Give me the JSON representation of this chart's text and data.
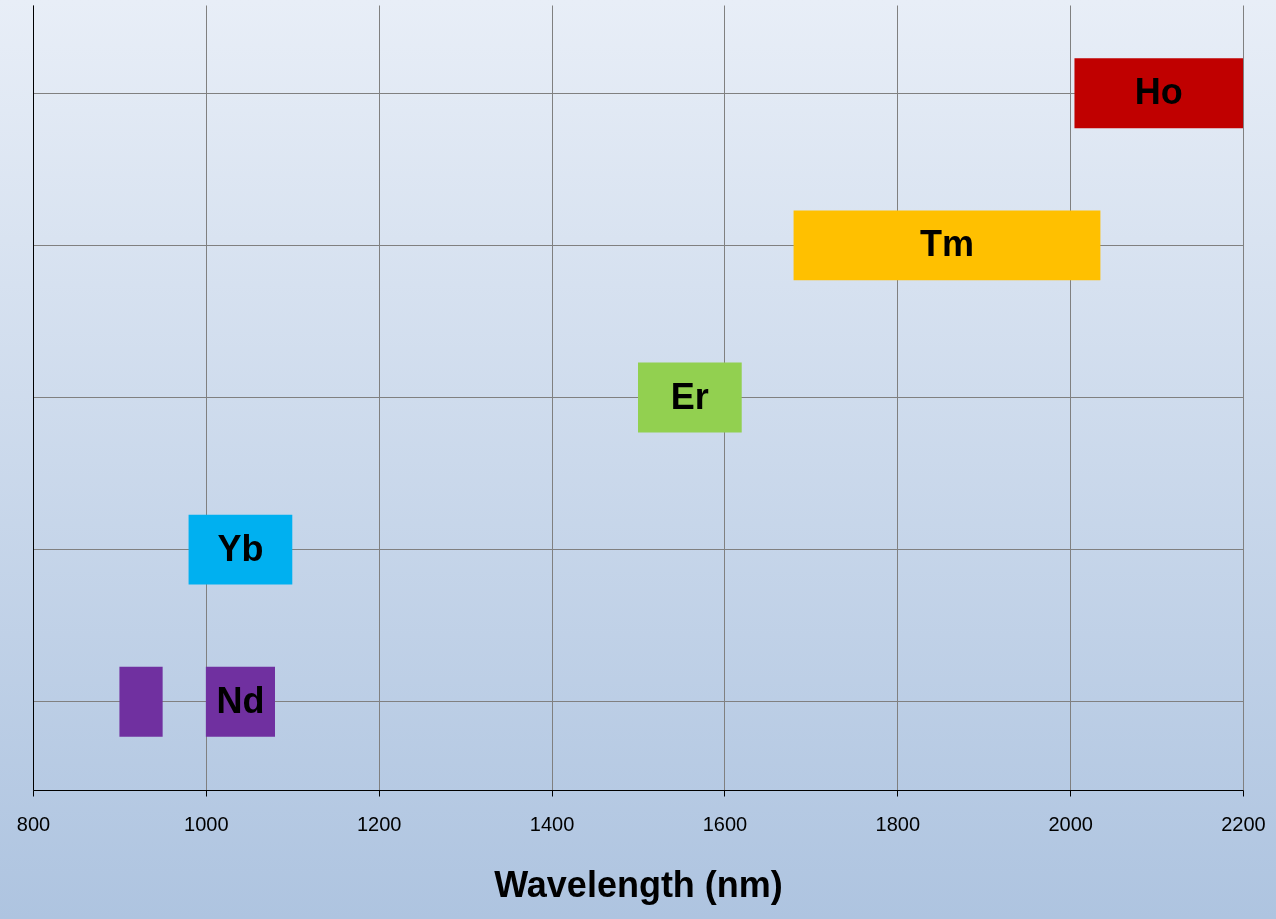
{
  "chart_data": {
    "type": "bar",
    "orientation": "horizontal",
    "xlabel": "Wavelength (nm)",
    "categories": [
      "Ho",
      "Tm",
      "Er",
      "Yb",
      "Nd"
    ],
    "series": [
      {
        "values": [
          195,
          355,
          120,
          120,
          80
        ],
        "base": [
          2005,
          1680,
          1500,
          980,
          1000
        ],
        "colors": [
          "#c00000",
          "#ffc000",
          "#92d050",
          "#00b0f0",
          "#7030a0"
        ]
      },
      {
        "values": [
          null,
          null,
          null,
          null,
          50
        ],
        "base": [
          null,
          null,
          null,
          null,
          900
        ],
        "colors": [
          null,
          null,
          null,
          null,
          "#7030a0"
        ]
      }
    ],
    "xlim": [
      800,
      2200
    ],
    "xticks": [
      800,
      1000,
      1200,
      1400,
      1600,
      1800,
      2000,
      2200
    ],
    "grid": true,
    "tick_labels": "x"
  }
}
